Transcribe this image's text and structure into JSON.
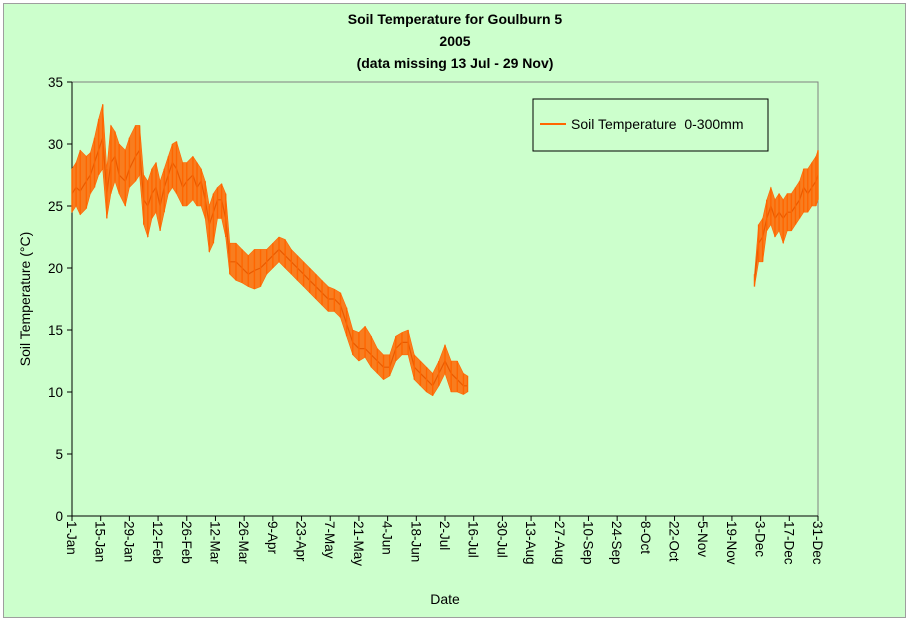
{
  "colors": {
    "background": "#ccffcc",
    "plot_background": "#ccffcc",
    "series": "#ff6600",
    "axis": "#000000"
  },
  "chart_data": {
    "type": "line",
    "title_lines": [
      "Soil Temperature for Goulburn 5",
      "2005",
      "(data missing 13 Jul - 29 Nov)"
    ],
    "xlabel": "Date",
    "ylabel": "Soil Temperature (°C)",
    "ylim": [
      0,
      35
    ],
    "yticks": [
      "0",
      "5",
      "10",
      "15",
      "20",
      "25",
      "30",
      "35"
    ],
    "xlim": [
      "2005-01-01",
      "2005-12-31"
    ],
    "x_tick_labels": [
      "1-Jan",
      "15-Jan",
      "29-Jan",
      "12-Feb",
      "26-Feb",
      "12-Mar",
      "26-Mar",
      "9-Apr",
      "23-Apr",
      "7-May",
      "21-May",
      "4-Jun",
      "18-Jun",
      "2-Jul",
      "16-Jul",
      "30-Jul",
      "13-Aug",
      "27-Aug",
      "10-Sep",
      "24-Sep",
      "8-Oct",
      "22-Oct",
      "5-Nov",
      "19-Nov",
      "3-Dec",
      "17-Dec",
      "31-Dec"
    ],
    "x_tick_dates": [
      "2005-01-01",
      "2005-01-15",
      "2005-01-29",
      "2005-02-12",
      "2005-02-26",
      "2005-03-12",
      "2005-03-26",
      "2005-04-09",
      "2005-04-23",
      "2005-05-07",
      "2005-05-21",
      "2005-06-04",
      "2005-06-18",
      "2005-07-02",
      "2005-07-16",
      "2005-07-30",
      "2005-08-13",
      "2005-08-27",
      "2005-09-10",
      "2005-09-24",
      "2005-10-08",
      "2005-10-22",
      "2005-11-05",
      "2005-11-19",
      "2005-12-03",
      "2005-12-17",
      "2005-12-31"
    ],
    "grid": false,
    "legend_position": "top-right",
    "series": [
      {
        "name": "Soil Temperature  0-300mm",
        "segments": [
          [
            {
              "x": "2005-01-01",
              "y": 26.0,
              "lo": 24.5,
              "hi": 28.0
            },
            {
              "x": "2005-01-03",
              "y": 26.5,
              "lo": 25.0,
              "hi": 28.5
            },
            {
              "x": "2005-01-05",
              "y": 26.2,
              "lo": 24.3,
              "hi": 29.5
            },
            {
              "x": "2005-01-08",
              "y": 27.0,
              "lo": 24.8,
              "hi": 29.0
            },
            {
              "x": "2005-01-10",
              "y": 27.5,
              "lo": 26.0,
              "hi": 29.3
            },
            {
              "x": "2005-01-12",
              "y": 28.5,
              "lo": 26.5,
              "hi": 30.5
            },
            {
              "x": "2005-01-14",
              "y": 29.5,
              "lo": 27.5,
              "hi": 32.0
            },
            {
              "x": "2005-01-16",
              "y": 30.5,
              "lo": 28.0,
              "hi": 33.2
            },
            {
              "x": "2005-01-18",
              "y": 26.0,
              "lo": 24.0,
              "hi": 28.0
            },
            {
              "x": "2005-01-20",
              "y": 28.5,
              "lo": 26.0,
              "hi": 31.5
            },
            {
              "x": "2005-01-22",
              "y": 29.0,
              "lo": 27.0,
              "hi": 31.0
            },
            {
              "x": "2005-01-24",
              "y": 27.5,
              "lo": 26.0,
              "hi": 30.0
            },
            {
              "x": "2005-01-27",
              "y": 27.0,
              "lo": 25.0,
              "hi": 29.5
            },
            {
              "x": "2005-01-29",
              "y": 28.0,
              "lo": 26.5,
              "hi": 30.5
            },
            {
              "x": "2005-02-01",
              "y": 29.0,
              "lo": 27.0,
              "hi": 31.5
            },
            {
              "x": "2005-02-03",
              "y": 29.5,
              "lo": 27.5,
              "hi": 31.5
            },
            {
              "x": "2005-02-05",
              "y": 25.5,
              "lo": 23.5,
              "hi": 27.5
            },
            {
              "x": "2005-02-07",
              "y": 25.0,
              "lo": 22.5,
              "hi": 27.0
            },
            {
              "x": "2005-02-09",
              "y": 26.0,
              "lo": 24.0,
              "hi": 28.0
            },
            {
              "x": "2005-02-11",
              "y": 26.5,
              "lo": 24.5,
              "hi": 28.5
            },
            {
              "x": "2005-02-13",
              "y": 25.0,
              "lo": 23.0,
              "hi": 27.0
            },
            {
              "x": "2005-02-15",
              "y": 26.5,
              "lo": 24.5,
              "hi": 28.0
            },
            {
              "x": "2005-02-17",
              "y": 27.5,
              "lo": 26.0,
              "hi": 29.0
            },
            {
              "x": "2005-02-19",
              "y": 28.5,
              "lo": 26.5,
              "hi": 30.0
            },
            {
              "x": "2005-02-21",
              "y": 28.0,
              "lo": 26.0,
              "hi": 30.2
            },
            {
              "x": "2005-02-24",
              "y": 26.5,
              "lo": 25.0,
              "hi": 28.5
            },
            {
              "x": "2005-02-26",
              "y": 27.0,
              "lo": 25.0,
              "hi": 28.5
            },
            {
              "x": "2005-03-01",
              "y": 27.5,
              "lo": 25.5,
              "hi": 29.0
            },
            {
              "x": "2005-03-03",
              "y": 26.5,
              "lo": 25.0,
              "hi": 28.5
            },
            {
              "x": "2005-03-05",
              "y": 27.0,
              "lo": 25.0,
              "hi": 28.0
            },
            {
              "x": "2005-03-07",
              "y": 25.5,
              "lo": 24.0,
              "hi": 27.0
            },
            {
              "x": "2005-03-09",
              "y": 23.5,
              "lo": 21.3,
              "hi": 25.0
            },
            {
              "x": "2005-03-11",
              "y": 24.5,
              "lo": 22.0,
              "hi": 26.0
            },
            {
              "x": "2005-03-13",
              "y": 25.5,
              "lo": 24.0,
              "hi": 26.5
            },
            {
              "x": "2005-03-15",
              "y": 25.5,
              "lo": 24.0,
              "hi": 26.8
            },
            {
              "x": "2005-03-17",
              "y": 24.0,
              "lo": 22.5,
              "hi": 26.0
            },
            {
              "x": "2005-03-19",
              "y": 20.5,
              "lo": 19.5,
              "hi": 22.0
            },
            {
              "x": "2005-03-22",
              "y": 20.5,
              "lo": 19.0,
              "hi": 22.0
            },
            {
              "x": "2005-03-25",
              "y": 20.0,
              "lo": 18.8,
              "hi": 21.5
            },
            {
              "x": "2005-03-28",
              "y": 19.5,
              "lo": 18.5,
              "hi": 21.0
            },
            {
              "x": "2005-03-31",
              "y": 19.8,
              "lo": 18.3,
              "hi": 21.5
            },
            {
              "x": "2005-04-03",
              "y": 20.0,
              "lo": 18.5,
              "hi": 21.5
            },
            {
              "x": "2005-04-06",
              "y": 20.5,
              "lo": 19.5,
              "hi": 21.5
            },
            {
              "x": "2005-04-09",
              "y": 21.0,
              "lo": 20.0,
              "hi": 22.0
            },
            {
              "x": "2005-04-12",
              "y": 21.5,
              "lo": 20.5,
              "hi": 22.5
            },
            {
              "x": "2005-04-15",
              "y": 21.0,
              "lo": 20.0,
              "hi": 22.3
            },
            {
              "x": "2005-04-18",
              "y": 20.5,
              "lo": 19.5,
              "hi": 21.5
            },
            {
              "x": "2005-04-21",
              "y": 20.0,
              "lo": 19.0,
              "hi": 21.0
            },
            {
              "x": "2005-04-24",
              "y": 19.5,
              "lo": 18.5,
              "hi": 20.5
            },
            {
              "x": "2005-04-27",
              "y": 19.0,
              "lo": 18.0,
              "hi": 20.0
            },
            {
              "x": "2005-04-30",
              "y": 18.5,
              "lo": 17.5,
              "hi": 19.5
            },
            {
              "x": "2005-05-03",
              "y": 18.0,
              "lo": 17.0,
              "hi": 19.0
            },
            {
              "x": "2005-05-06",
              "y": 17.5,
              "lo": 16.5,
              "hi": 18.5
            },
            {
              "x": "2005-05-09",
              "y": 17.5,
              "lo": 16.5,
              "hi": 18.3
            },
            {
              "x": "2005-05-12",
              "y": 17.0,
              "lo": 16.0,
              "hi": 18.0
            },
            {
              "x": "2005-05-15",
              "y": 15.5,
              "lo": 14.5,
              "hi": 16.8
            },
            {
              "x": "2005-05-18",
              "y": 14.0,
              "lo": 13.0,
              "hi": 15.0
            },
            {
              "x": "2005-05-21",
              "y": 13.5,
              "lo": 12.5,
              "hi": 14.8
            },
            {
              "x": "2005-05-24",
              "y": 13.5,
              "lo": 12.8,
              "hi": 15.3
            },
            {
              "x": "2005-05-27",
              "y": 13.0,
              "lo": 12.0,
              "hi": 14.5
            },
            {
              "x": "2005-05-30",
              "y": 12.5,
              "lo": 11.5,
              "hi": 13.5
            },
            {
              "x": "2005-06-02",
              "y": 12.0,
              "lo": 11.0,
              "hi": 13.0
            },
            {
              "x": "2005-06-05",
              "y": 12.0,
              "lo": 11.3,
              "hi": 13.0
            },
            {
              "x": "2005-06-08",
              "y": 13.5,
              "lo": 12.5,
              "hi": 14.5
            },
            {
              "x": "2005-06-11",
              "y": 14.0,
              "lo": 13.0,
              "hi": 14.8
            },
            {
              "x": "2005-06-14",
              "y": 14.0,
              "lo": 13.0,
              "hi": 15.0
            },
            {
              "x": "2005-06-17",
              "y": 12.0,
              "lo": 11.0,
              "hi": 13.0
            },
            {
              "x": "2005-06-20",
              "y": 11.5,
              "lo": 10.5,
              "hi": 12.5
            },
            {
              "x": "2005-06-23",
              "y": 11.0,
              "lo": 10.0,
              "hi": 12.0
            },
            {
              "x": "2005-06-26",
              "y": 10.5,
              "lo": 9.7,
              "hi": 11.5
            },
            {
              "x": "2005-06-29",
              "y": 11.5,
              "lo": 10.5,
              "hi": 12.5
            },
            {
              "x": "2005-07-02",
              "y": 12.5,
              "lo": 11.5,
              "hi": 13.8
            },
            {
              "x": "2005-07-05",
              "y": 11.5,
              "lo": 10.0,
              "hi": 12.5
            },
            {
              "x": "2005-07-08",
              "y": 11.0,
              "lo": 10.0,
              "hi": 12.5
            },
            {
              "x": "2005-07-11",
              "y": 10.5,
              "lo": 9.8,
              "hi": 11.5
            },
            {
              "x": "2005-07-13",
              "y": 10.5,
              "lo": 10.0,
              "hi": 11.3
            }
          ],
          [
            {
              "x": "2005-11-30",
              "y": 19.0,
              "lo": 18.5,
              "hi": 19.5
            },
            {
              "x": "2005-12-02",
              "y": 22.0,
              "lo": 20.5,
              "hi": 23.5
            },
            {
              "x": "2005-12-04",
              "y": 22.5,
              "lo": 20.5,
              "hi": 24.0
            },
            {
              "x": "2005-12-06",
              "y": 24.0,
              "lo": 23.0,
              "hi": 25.5
            },
            {
              "x": "2005-12-08",
              "y": 25.0,
              "lo": 23.5,
              "hi": 26.5
            },
            {
              "x": "2005-12-10",
              "y": 24.0,
              "lo": 22.5,
              "hi": 25.5
            },
            {
              "x": "2005-12-12",
              "y": 24.5,
              "lo": 23.0,
              "hi": 26.0
            },
            {
              "x": "2005-12-14",
              "y": 24.0,
              "lo": 22.0,
              "hi": 25.5
            },
            {
              "x": "2005-12-16",
              "y": 24.5,
              "lo": 23.0,
              "hi": 26.0
            },
            {
              "x": "2005-12-18",
              "y": 24.5,
              "lo": 23.0,
              "hi": 26.0
            },
            {
              "x": "2005-12-20",
              "y": 25.0,
              "lo": 23.5,
              "hi": 26.5
            },
            {
              "x": "2005-12-22",
              "y": 25.5,
              "lo": 24.0,
              "hi": 27.0
            },
            {
              "x": "2005-12-24",
              "y": 26.5,
              "lo": 24.5,
              "hi": 28.0
            },
            {
              "x": "2005-12-26",
              "y": 26.0,
              "lo": 24.5,
              "hi": 28.0
            },
            {
              "x": "2005-12-28",
              "y": 26.5,
              "lo": 25.0,
              "hi": 28.5
            },
            {
              "x": "2005-12-30",
              "y": 27.0,
              "lo": 25.0,
              "hi": 29.0
            },
            {
              "x": "2005-12-31",
              "y": 27.5,
              "lo": 25.5,
              "hi": 29.5
            }
          ]
        ]
      }
    ]
  }
}
